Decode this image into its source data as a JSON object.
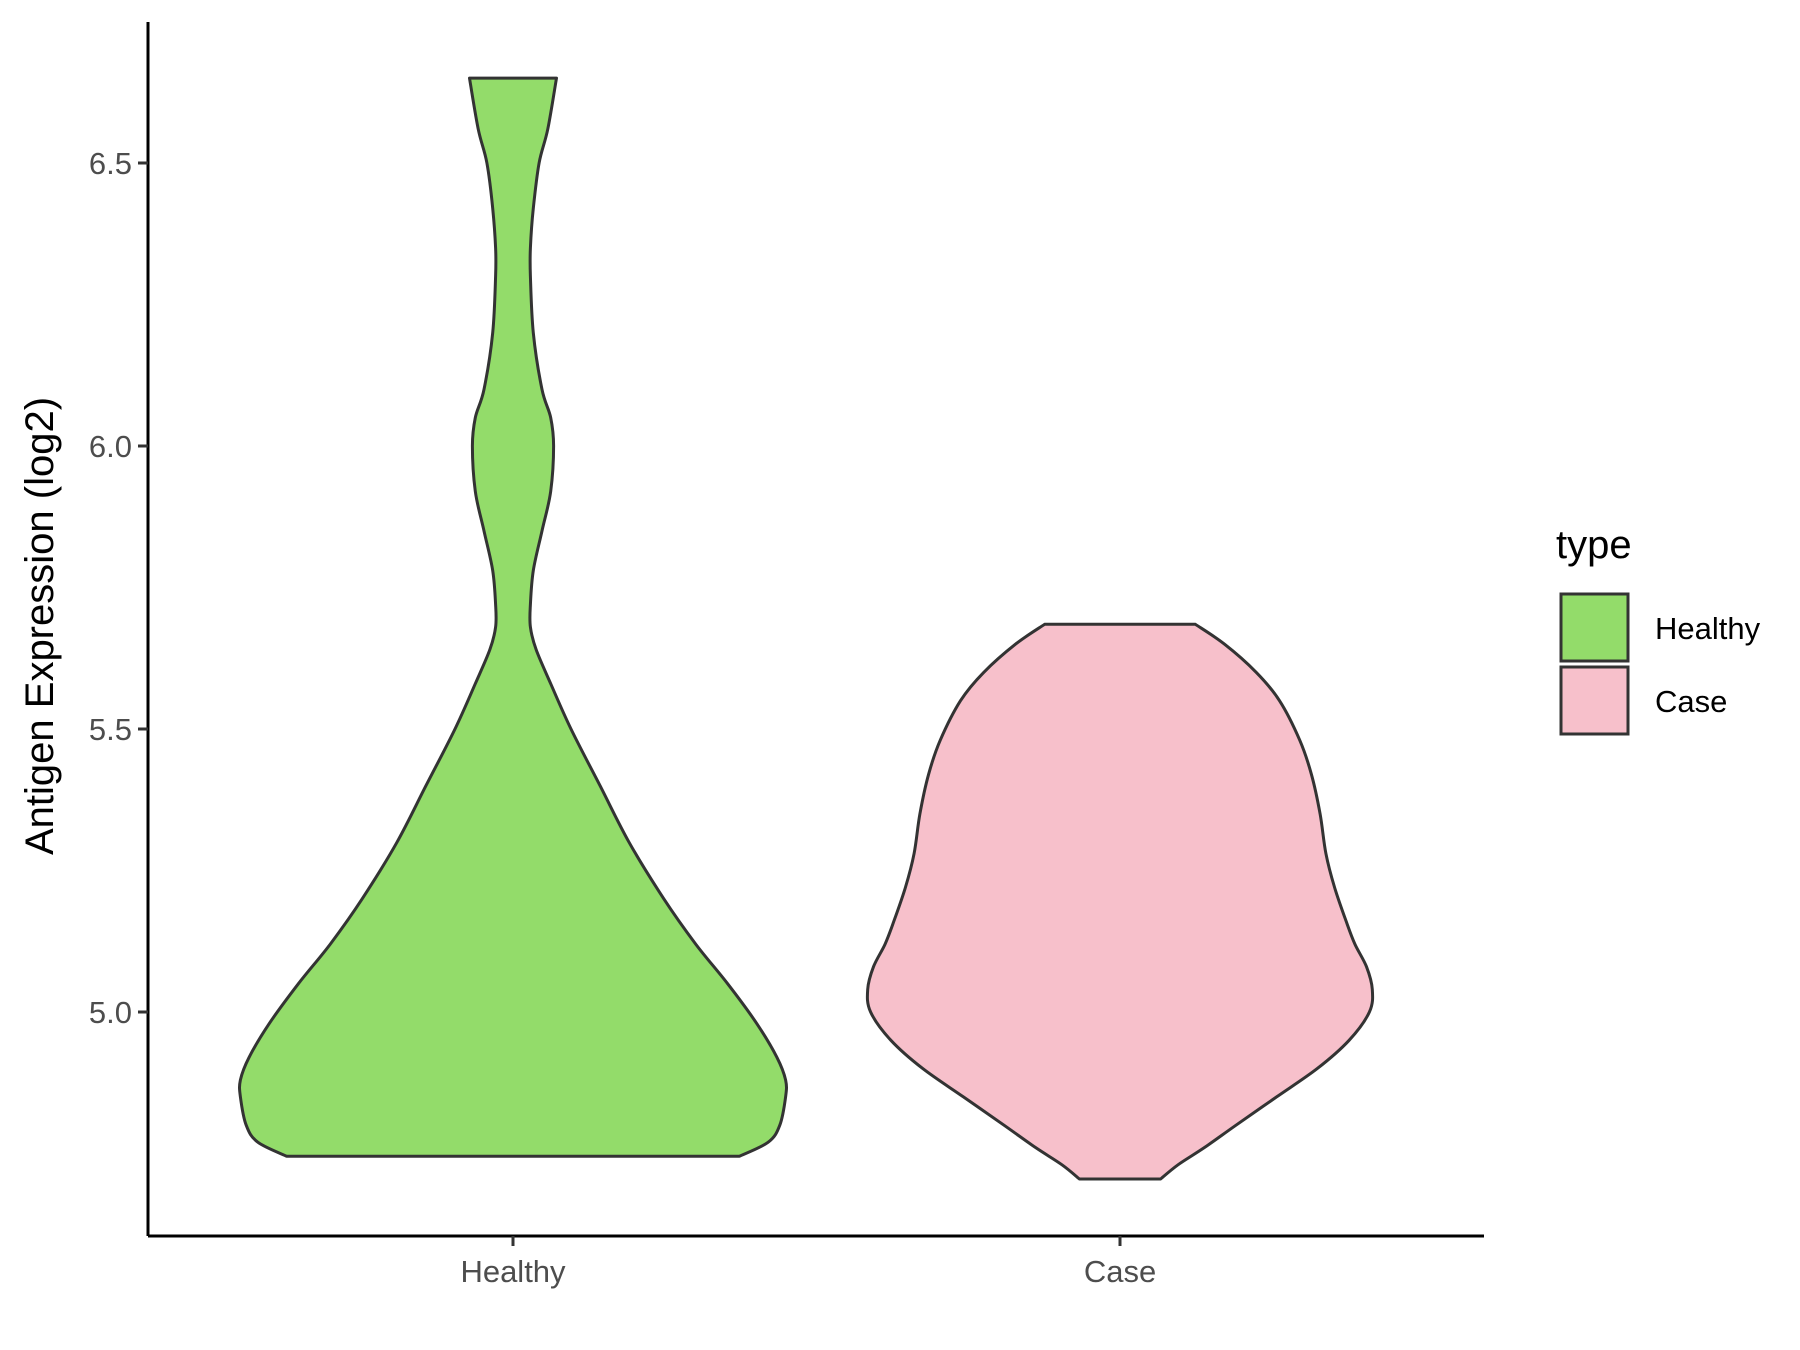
{
  "chart_data": {
    "type": "violin",
    "title": "",
    "xlabel": "",
    "ylabel": "Antigen Expression (log2)",
    "categories": [
      "Healthy",
      "Case"
    ],
    "ylim": [
      4.62,
      6.75
    ],
    "yticks": [
      "5.0",
      "5.5",
      "6.0",
      "6.5"
    ],
    "ytick_values": [
      5.0,
      5.5,
      6.0,
      6.5
    ],
    "grid": false,
    "legend": {
      "title": "type",
      "position": "right",
      "entries": [
        {
          "label": "Healthy",
          "color": "#93DC6A"
        },
        {
          "label": "Case",
          "color": "#F7C0CB"
        }
      ]
    },
    "series": [
      {
        "name": "Healthy",
        "color": "#93DC6A",
        "min": 4.745,
        "max": 6.65,
        "density_y": [
          4.745,
          4.77,
          4.8,
          4.85,
          4.88,
          4.92,
          4.98,
          5.05,
          5.12,
          5.2,
          5.3,
          5.4,
          5.5,
          5.58,
          5.64,
          5.68,
          5.72,
          5.78,
          5.85,
          5.92,
          6.0,
          6.05,
          6.1,
          6.2,
          6.3,
          6.35,
          6.42,
          6.5,
          6.56,
          6.65
        ],
        "density_width": [
          0.78,
          0.88,
          0.92,
          0.94,
          0.94,
          0.91,
          0.84,
          0.74,
          0.63,
          0.52,
          0.4,
          0.3,
          0.2,
          0.13,
          0.08,
          0.06,
          0.06,
          0.07,
          0.1,
          0.13,
          0.14,
          0.13,
          0.1,
          0.07,
          0.06,
          0.06,
          0.07,
          0.09,
          0.12,
          0.15
        ]
      },
      {
        "name": "Case",
        "color": "#F7C0CB",
        "min": 4.705,
        "max": 5.685,
        "density_y": [
          4.705,
          4.73,
          4.76,
          4.8,
          4.85,
          4.9,
          4.95,
          5.0,
          5.04,
          5.08,
          5.12,
          5.16,
          5.22,
          5.28,
          5.35,
          5.42,
          5.48,
          5.55,
          5.6,
          5.65,
          5.685
        ],
        "density_width": [
          0.14,
          0.2,
          0.29,
          0.4,
          0.54,
          0.68,
          0.79,
          0.86,
          0.87,
          0.85,
          0.81,
          0.78,
          0.74,
          0.71,
          0.69,
          0.66,
          0.62,
          0.55,
          0.47,
          0.36,
          0.26
        ]
      }
    ]
  }
}
